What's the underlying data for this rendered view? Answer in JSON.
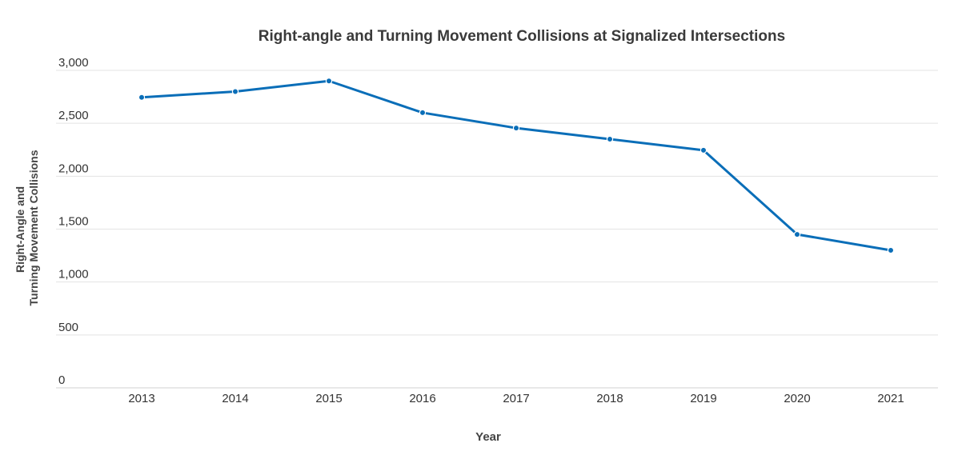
{
  "chart_data": {
    "type": "line",
    "title": "Right-angle and Turning Movement Collisions at Signalized Intersections",
    "xlabel": "Year",
    "ylabel_lines": [
      "Right-Angle and",
      "Turning Movement Collisions"
    ],
    "categories": [
      "2013",
      "2014",
      "2015",
      "2016",
      "2017",
      "2018",
      "2019",
      "2020",
      "2021"
    ],
    "series": [
      {
        "name": "Right-Angle and Turning Movement Collisions",
        "values": [
          2745,
          2800,
          2900,
          2600,
          2455,
          2350,
          2245,
          1450,
          1300
        ],
        "color": "#0a6eb8"
      }
    ],
    "ylim": [
      0,
      3000
    ],
    "yticks": [
      0,
      500,
      1000,
      1500,
      2000,
      2500,
      3000
    ],
    "ytick_labels": [
      "0",
      "500",
      "1,000",
      "1,500",
      "2,000",
      "2,500",
      "3,000"
    ],
    "grid": true,
    "legend": "none"
  }
}
